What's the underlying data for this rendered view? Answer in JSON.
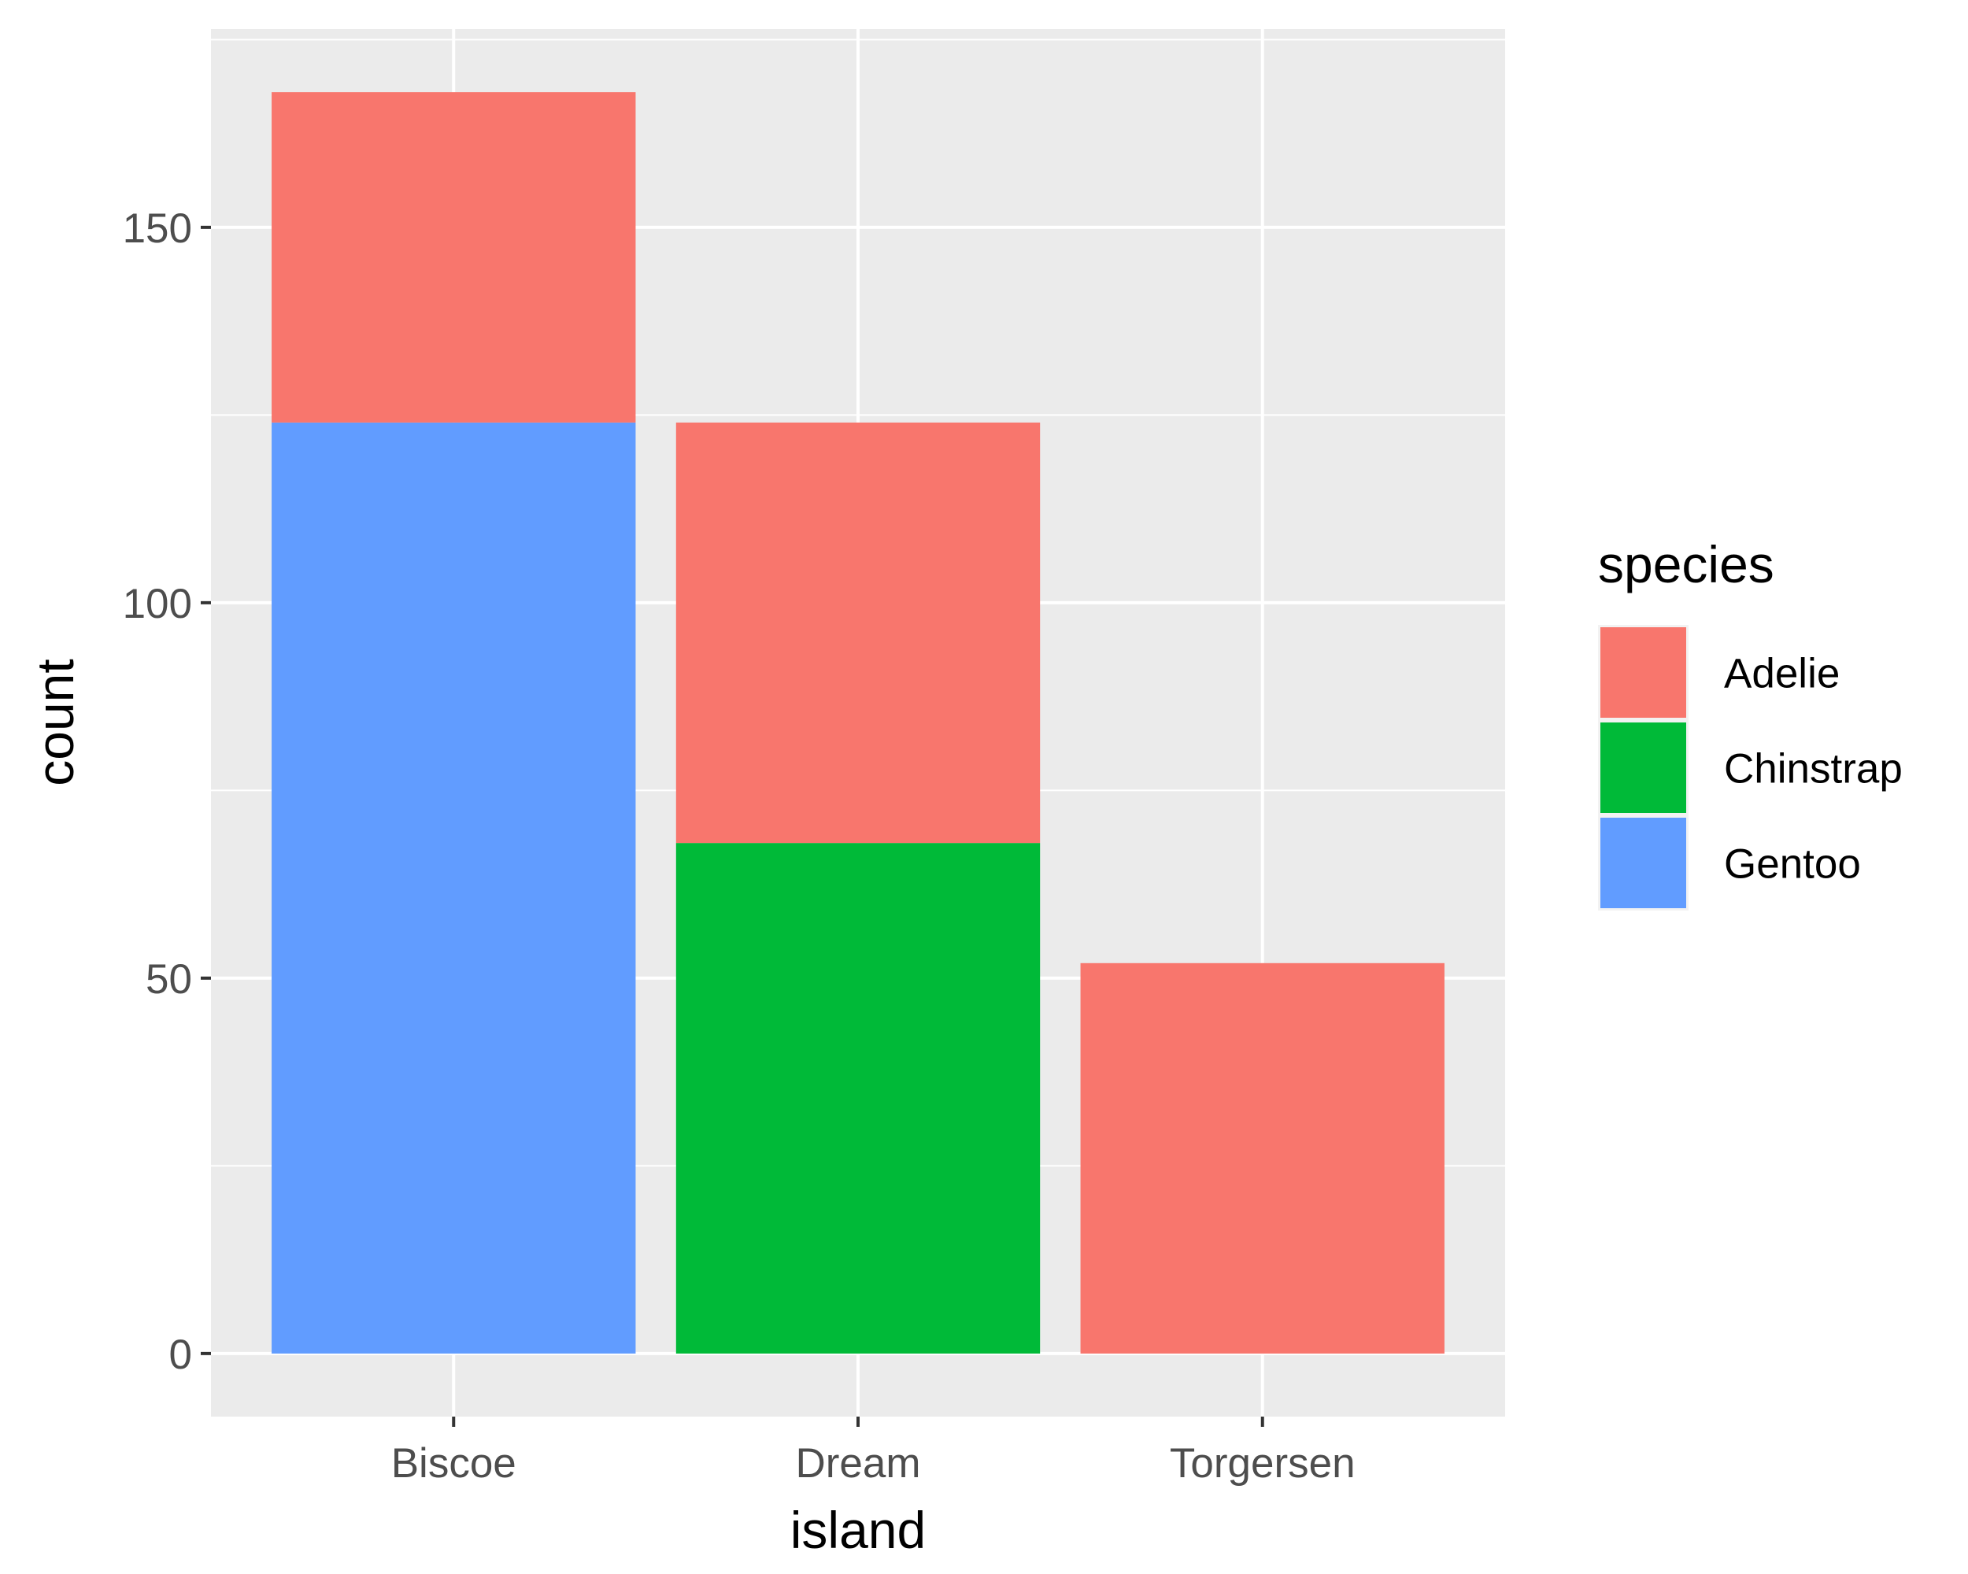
{
  "chart_data": {
    "type": "bar",
    "stacked": true,
    "categories": [
      "Biscoe",
      "Dream",
      "Torgersen"
    ],
    "series": [
      {
        "name": "Adelie",
        "color": "#F8766D",
        "values": [
          44,
          56,
          52
        ]
      },
      {
        "name": "Chinstrap",
        "color": "#00BA38",
        "values": [
          0,
          68,
          0
        ]
      },
      {
        "name": "Gentoo",
        "color": "#619CFF",
        "values": [
          124,
          0,
          0
        ]
      }
    ],
    "stack_order_bottom_to_top": [
      "Gentoo",
      "Chinstrap",
      "Adelie"
    ],
    "xlabel": "island",
    "ylabel": "count",
    "ylim": [
      -8.4,
      176.4
    ],
    "yticks": [
      0,
      50,
      100,
      150
    ],
    "ytick_labels": [
      "0",
      "50",
      "100",
      "150"
    ],
    "grid": true,
    "legend": {
      "title": "species",
      "position": "right"
    }
  }
}
